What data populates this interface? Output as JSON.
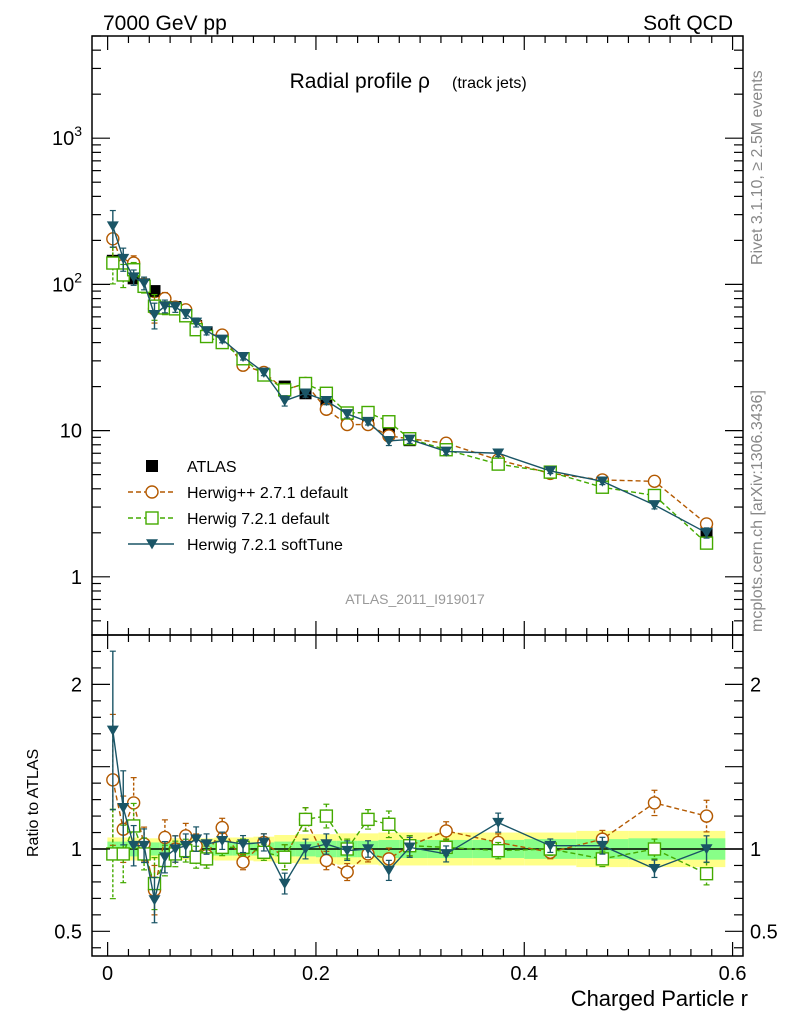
{
  "header": {
    "left": "7000 GeV pp",
    "right": "Soft QCD"
  },
  "side": {
    "rivet": "Rivet 3.1.10, ≥ 2.5M events",
    "mcplots": "mcplots.cern.ch [arXiv:1306.3436]"
  },
  "chart_data": [
    {
      "type": "scatter",
      "title": "Radial profile ρ",
      "title_suffix": "(track jets)",
      "watermark": "ATLAS_2011_I919017",
      "xlabel": "Charged Particle r",
      "ylabel": "",
      "yscale": "log",
      "xlim": [
        -0.015,
        0.61
      ],
      "ylim": [
        0.4,
        5000
      ],
      "ytick_labels": [
        "1",
        "10",
        "10²",
        "10³"
      ],
      "legend_position": "bottom-left",
      "x": [
        0.005,
        0.015,
        0.025,
        0.035,
        0.045,
        0.055,
        0.065,
        0.075,
        0.085,
        0.095,
        0.11,
        0.13,
        0.15,
        0.17,
        0.19,
        0.21,
        0.23,
        0.25,
        0.27,
        0.29,
        0.325,
        0.375,
        0.425,
        0.475,
        0.525,
        0.575
      ],
      "series": [
        {
          "name": "ATLAS",
          "marker": "square-filled",
          "color": "#000000",
          "values": [
            145,
            120,
            110,
            100,
            90,
            75,
            70,
            62,
            52,
            47,
            40,
            31,
            24,
            20,
            18,
            15.5,
            13,
            11.5,
            9.8,
            8.6,
            7.4,
            6.0,
            5.2,
            4.4,
            3.6,
            2.0
          ]
        },
        {
          "name": "Herwig++ 2.7.1 default",
          "marker": "circle-open",
          "color": "#b35900",
          "values": [
            205,
            135,
            140,
            100,
            68,
            80,
            70,
            67,
            53,
            45,
            45,
            28,
            25,
            19,
            21,
            14,
            11,
            11,
            9.2,
            8.8,
            8.2,
            6.3,
            5.1,
            4.6,
            4.5,
            2.3
          ]
        },
        {
          "name": "Herwig 7.2.1 default",
          "marker": "square-open",
          "color": "#44aa00",
          "values": [
            140,
            116,
            126,
            97,
            71,
            69,
            68,
            61,
            49,
            44,
            40,
            31,
            24,
            19,
            21,
            18,
            13.2,
            13.3,
            11.5,
            8.8,
            7.4,
            5.9,
            5.2,
            4.1,
            3.6,
            1.7
          ]
        },
        {
          "name": "Herwig 7.2.1 softTune",
          "marker": "triangle-down-filled",
          "color": "#1a5566",
          "values": [
            250,
            150,
            112,
            102,
            62,
            71,
            70,
            63,
            55,
            48,
            42,
            32,
            25,
            16,
            18,
            16,
            13,
            11.5,
            8.5,
            8.7,
            7.2,
            7.0,
            5.3,
            4.5,
            3.1,
            2.0
          ]
        }
      ]
    },
    {
      "type": "scatter",
      "title": "",
      "xlabel": "Charged Particle r",
      "ylabel": "Ratio to ATLAS",
      "xlim": [
        -0.015,
        0.61
      ],
      "ylim": [
        0.35,
        2.3
      ],
      "ytick_labels": [
        "0.5",
        "1",
        "2"
      ],
      "xtick_labels": [
        "0",
        "0.2",
        "0.4",
        "0.6"
      ],
      "band_inner_halfwidth": [
        0.045,
        0.045,
        0.045,
        0.04,
        0.04,
        0.04,
        0.04,
        0.04,
        0.04,
        0.04,
        0.04,
        0.04,
        0.04,
        0.045,
        0.045,
        0.05,
        0.05,
        0.05,
        0.055,
        0.055,
        0.055,
        0.055,
        0.06,
        0.06,
        0.065,
        0.065
      ],
      "band_outer_halfwidth": [
        0.07,
        0.07,
        0.07,
        0.065,
        0.065,
        0.065,
        0.065,
        0.065,
        0.065,
        0.065,
        0.07,
        0.07,
        0.075,
        0.085,
        0.09,
        0.09,
        0.095,
        0.095,
        0.1,
        0.1,
        0.1,
        0.1,
        0.1,
        0.11,
        0.11,
        0.11
      ],
      "series": [
        {
          "name": "Herwig++ 2.7.1 default",
          "values": [
            1.42,
            1.12,
            1.28,
            1.03,
            0.75,
            1.07,
            1.0,
            1.08,
            1.02,
            0.96,
            1.13,
            0.92,
            1.04,
            0.95,
            1.18,
            0.93,
            0.86,
            0.97,
            0.94,
            1.02,
            1.11,
            1.04,
            0.98,
            1.06,
            1.28,
            1.2
          ]
        },
        {
          "name": "Herwig 7.2.1 default",
          "values": [
            0.97,
            0.97,
            1.14,
            0.97,
            0.79,
            0.93,
            0.97,
            0.99,
            0.95,
            0.94,
            1.01,
            1.01,
            0.98,
            0.95,
            1.18,
            1.2,
            1.0,
            1.18,
            1.15,
            1.02,
            1.01,
            0.99,
            1.0,
            0.94,
            1.0,
            0.85
          ]
        },
        {
          "name": "Herwig 7.2.1 softTune",
          "values": [
            1.72,
            1.25,
            1.02,
            1.02,
            0.69,
            0.95,
            1.0,
            1.02,
            1.06,
            1.03,
            1.05,
            1.03,
            1.04,
            0.79,
            1.0,
            1.03,
            0.99,
            1.0,
            0.87,
            1.01,
            0.97,
            1.16,
            1.02,
            1.02,
            0.88,
            1.0
          ]
        }
      ]
    }
  ]
}
